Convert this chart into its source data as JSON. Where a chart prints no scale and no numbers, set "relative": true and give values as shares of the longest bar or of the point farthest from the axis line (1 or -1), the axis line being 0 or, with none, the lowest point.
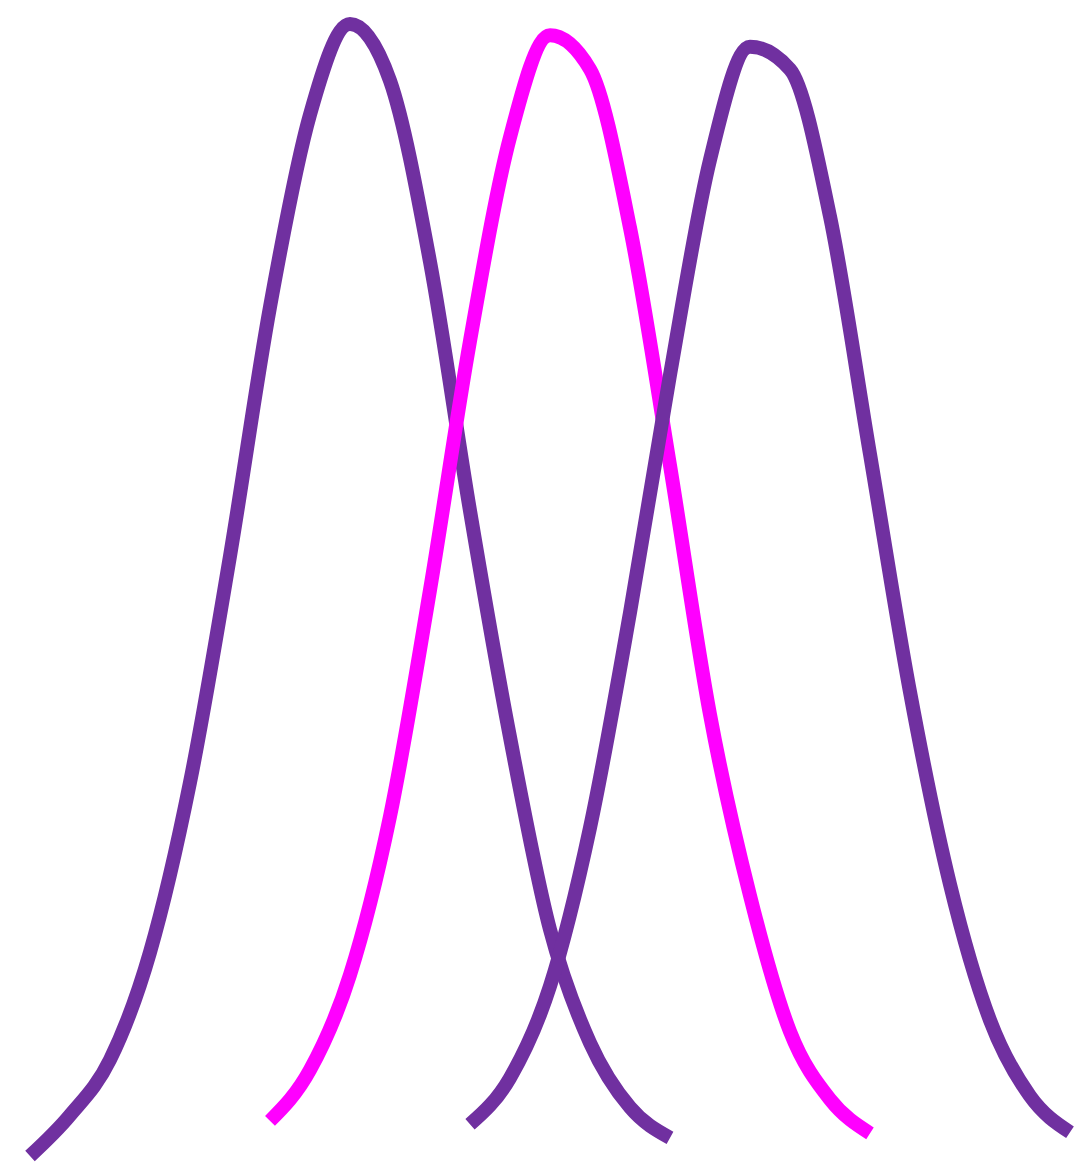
{
  "chart_data": {
    "type": "line",
    "relative": true,
    "line_style": "solid",
    "marker": "none",
    "categories": [
      null,
      null,
      null,
      null,
      null,
      null,
      null,
      null,
      null,
      null,
      null,
      null,
      null,
      null,
      null,
      null,
      null,
      null,
      null,
      null,
      null,
      null,
      null,
      null,
      null,
      null,
      null
    ],
    "series": [
      {
        "color": "#7030a0",
        "values": [
          0,
          0.036,
          0.085,
          0.18,
          0.33,
          0.53,
          0.75,
          0.92,
          1.0,
          0.95,
          0.79,
          0.57,
          0.37,
          0.2,
          0.1,
          0.043,
          0.016,
          null,
          null,
          null,
          null,
          null,
          null,
          null,
          null,
          null,
          null
        ]
      },
      {
        "color": "#ff00ff",
        "values": [
          null,
          null,
          null,
          null,
          null,
          null,
          0.031,
          0.076,
          0.16,
          0.3,
          0.5,
          0.72,
          0.9,
          0.99,
          0.96,
          0.82,
          0.61,
          0.39,
          0.23,
          0.11,
          0.05,
          0.02,
          null,
          null,
          null,
          null,
          null
        ]
      },
      {
        "color": "#7030a0",
        "values": [
          null,
          null,
          null,
          null,
          null,
          null,
          null,
          null,
          null,
          null,
          null,
          0.028,
          0.069,
          0.15,
          0.29,
          0.48,
          0.69,
          0.88,
          0.98,
          0.96,
          0.83,
          0.62,
          0.41,
          0.24,
          0.12,
          0.053,
          0.021
        ]
      }
    ]
  }
}
